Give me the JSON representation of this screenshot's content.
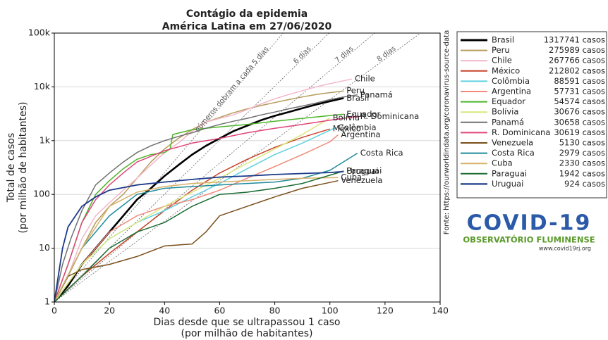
{
  "chart_data": {
    "type": "line",
    "title": "Contágio da epidemia",
    "subtitle": "América Latina em 27/06/2020",
    "x_label": "Dias desde que se ultrapassou 1 caso",
    "x_label_sub": "(por milhão de habitantes)",
    "y_label": "Total de casos",
    "y_label_sub": "(por milhão de habitantes)",
    "source": "Fonte: https://ourworldindata.org/coronavirus-source-data",
    "logo_title": "COVID-19",
    "logo_subtitle": "OBSERVATÓRIO FLUMINENSE",
    "logo_url": "www.covid19rj.org",
    "log_y": true,
    "grid": true,
    "legend": "outside-right",
    "xlim": [
      0,
      140
    ],
    "xticks": [
      0,
      20,
      40,
      60,
      80,
      100,
      120,
      140
    ],
    "ylim": [
      1,
      100000
    ],
    "yticks": [
      1,
      10,
      100,
      {
        "value": 1000,
        "label": "1k"
      },
      {
        "value": 10000,
        "label": "10k"
      },
      {
        "value": 100000,
        "label": "100k"
      }
    ],
    "reference_lines": [
      {
        "doubling_days": 5,
        "label": "números dobram a cada 5 dias"
      },
      {
        "doubling_days": 6,
        "label": "6 dias"
      },
      {
        "doubling_days": 7,
        "label": "7 dias"
      },
      {
        "doubling_days": 8,
        "label": "8 dias"
      }
    ],
    "series": [
      {
        "name": "Brasil",
        "legend_value": "1317741 casos",
        "color": "#000000",
        "width": 2.6,
        "x": [
          0,
          5,
          10,
          15,
          20,
          25,
          30,
          35,
          40,
          45,
          50,
          55,
          60,
          65,
          70,
          75,
          80,
          85,
          90,
          95,
          100,
          105
        ],
        "values": [
          1,
          2,
          5,
          10,
          20,
          40,
          80,
          130,
          220,
          350,
          550,
          800,
          1100,
          1500,
          1900,
          2400,
          2900,
          3400,
          4000,
          4700,
          5400,
          6200
        ]
      },
      {
        "name": "Peru",
        "legend_value": "275989 casos",
        "color": "#b39b5a",
        "width": 1.5,
        "x": [
          0,
          5,
          10,
          15,
          20,
          25,
          30,
          35,
          40,
          45,
          50,
          55,
          60,
          65,
          70,
          75,
          80,
          85,
          90,
          95,
          100,
          105
        ],
        "values": [
          1,
          3,
          10,
          30,
          60,
          100,
          200,
          400,
          700,
          1100,
          1600,
          2200,
          2700,
          3300,
          3900,
          4500,
          5100,
          5800,
          6500,
          7200,
          7800,
          8400
        ]
      },
      {
        "name": "Chile",
        "legend_value": "267766 casos",
        "color": "#f4b6c8",
        "width": 1.5,
        "x": [
          0,
          5,
          10,
          15,
          20,
          25,
          30,
          35,
          40,
          45,
          50,
          55,
          60,
          65,
          70,
          75,
          80,
          85,
          90,
          95,
          100,
          108
        ],
        "values": [
          1,
          3,
          15,
          40,
          70,
          120,
          200,
          350,
          600,
          900,
          1500,
          2200,
          2600,
          3000,
          3800,
          4800,
          6000,
          7200,
          8500,
          10000,
          11500,
          14000
        ]
      },
      {
        "name": "México",
        "legend_value": "212802 casos",
        "color": "#c8442a",
        "width": 1.5,
        "x": [
          0,
          10,
          20,
          30,
          40,
          50,
          60,
          70,
          80,
          90,
          100
        ],
        "values": [
          1,
          3,
          8,
          20,
          50,
          120,
          250,
          450,
          750,
          1150,
          1650
        ]
      },
      {
        "name": "Colômbia",
        "legend_value": "88591 casos",
        "color": "#62d0e0",
        "width": 1.5,
        "x": [
          0,
          10,
          20,
          30,
          40,
          50,
          60,
          70,
          80,
          90,
          102
        ],
        "values": [
          1,
          5,
          15,
          30,
          50,
          90,
          160,
          300,
          550,
          900,
          1740
        ]
      },
      {
        "name": "Argentina",
        "legend_value": "57731 casos",
        "color": "#f08a7a",
        "width": 1.5,
        "x": [
          0,
          10,
          20,
          30,
          40,
          50,
          60,
          70,
          80,
          90,
          100,
          103
        ],
        "values": [
          1,
          5,
          20,
          40,
          60,
          80,
          120,
          200,
          330,
          550,
          950,
          1280
        ]
      },
      {
        "name": "Equador",
        "legend_value": "54574 casos",
        "color": "#4eb52a",
        "width": 1.5,
        "x": [
          0,
          5,
          10,
          15,
          20,
          25,
          30,
          35,
          40,
          42,
          43,
          50,
          60,
          70,
          80,
          90,
          105
        ],
        "values": [
          1,
          5,
          30,
          100,
          180,
          300,
          450,
          550,
          600,
          700,
          1300,
          1600,
          1800,
          2000,
          2300,
          2600,
          3100
        ]
      },
      {
        "name": "Bolívia",
        "legend_value": "30676 casos",
        "color": "#d8e87a",
        "width": 1.5,
        "x": [
          0,
          10,
          20,
          30,
          40,
          50,
          60,
          70,
          80,
          90,
          100
        ],
        "values": [
          1,
          5,
          15,
          30,
          60,
          110,
          200,
          380,
          700,
          1300,
          2630
        ]
      },
      {
        "name": "Panamá",
        "legend_value": "30658 casos",
        "color": "#707070",
        "width": 1.5,
        "x": [
          0,
          3,
          6,
          10,
          15,
          20,
          25,
          30,
          35,
          40,
          45,
          50,
          55,
          60,
          65,
          70,
          75,
          80,
          85,
          90,
          95,
          100,
          105,
          110
        ],
        "values": [
          1,
          5,
          15,
          50,
          150,
          250,
          400,
          600,
          800,
          1000,
          1200,
          1400,
          1700,
          2000,
          2300,
          2600,
          3000,
          3400,
          3900,
          4400,
          5000,
          5800,
          6500,
          7100
        ]
      },
      {
        "name": "R. Dominicana",
        "legend_value": "30619 casos",
        "color": "#e0457a",
        "width": 1.5,
        "x": [
          0,
          5,
          10,
          15,
          20,
          25,
          30,
          40,
          50,
          60,
          70,
          80,
          90,
          100,
          110
        ],
        "values": [
          1,
          5,
          30,
          80,
          150,
          250,
          400,
          650,
          900,
          1100,
          1400,
          1700,
          2000,
          2400,
          2820
        ]
      },
      {
        "name": "Venezuela",
        "legend_value": "5130 casos",
        "color": "#7a4f1a",
        "width": 1.5,
        "x": [
          0,
          5,
          10,
          20,
          30,
          40,
          50,
          55,
          60,
          70,
          80,
          90,
          103
        ],
        "values": [
          1,
          3,
          4,
          5,
          7,
          11,
          12,
          20,
          40,
          60,
          90,
          130,
          180
        ]
      },
      {
        "name": "Costa Rica",
        "legend_value": "2979 casos",
        "color": "#1f8a9a",
        "width": 1.5,
        "x": [
          0,
          10,
          20,
          30,
          40,
          50,
          60,
          70,
          80,
          90,
          100,
          110
        ],
        "values": [
          1,
          10,
          40,
          100,
          130,
          140,
          150,
          160,
          170,
          200,
          280,
          585
        ]
      },
      {
        "name": "Cuba",
        "legend_value": "2330 casos",
        "color": "#d6b168",
        "width": 1.5,
        "x": [
          0,
          10,
          20,
          30,
          40,
          50,
          60,
          70,
          80,
          90,
          103
        ],
        "values": [
          1,
          10,
          60,
          110,
          140,
          160,
          170,
          180,
          190,
          200,
          206
        ]
      },
      {
        "name": "Paraguai",
        "legend_value": "1942 casos",
        "color": "#1a6b32",
        "width": 1.5,
        "x": [
          0,
          10,
          20,
          30,
          40,
          50,
          60,
          70,
          80,
          90,
          105
        ],
        "values": [
          1,
          3,
          10,
          20,
          30,
          60,
          100,
          110,
          130,
          160,
          272
        ]
      },
      {
        "name": "Uruguai",
        "legend_value": "924 casos",
        "color": "#1a3a8a",
        "width": 1.8,
        "x": [
          0,
          3,
          5,
          10,
          15,
          20,
          30,
          40,
          50,
          60,
          70,
          80,
          90,
          100,
          105
        ],
        "values": [
          1,
          10,
          25,
          60,
          90,
          120,
          150,
          170,
          190,
          210,
          220,
          235,
          245,
          255,
          266
        ]
      }
    ]
  }
}
